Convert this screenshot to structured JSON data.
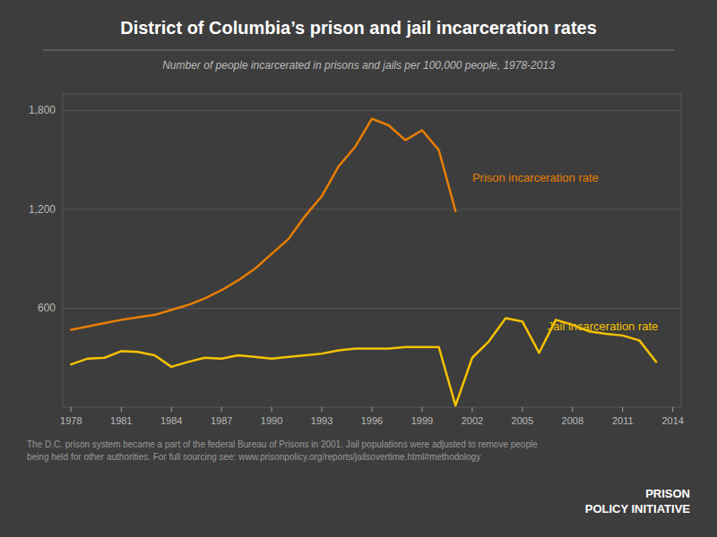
{
  "chart_data": {
    "type": "line",
    "title": "District of Columbia’s prison and jail incarceration rates",
    "subtitle": "Number of people incarcerated in prisons and jails per 100,000 people, 1978-2013",
    "footnote": "The D.C. prison system became a part of the federal Bureau of Prisons in 2001. Jail populations were adjusted to remove people\nbeing held for other authorities. For full sourcing see: www.prisonpolicy.org/reports/jailsovertime.html#methodology",
    "credit": "PRISON\nPOLICY INITIATIVE",
    "xlim": [
      1977.5,
      2014.5
    ],
    "xticks": [
      1978,
      1981,
      1984,
      1987,
      1990,
      1993,
      1996,
      1999,
      2002,
      2005,
      2008,
      2011,
      2014
    ],
    "ylim": [
      0,
      1900
    ],
    "yticks": [
      600,
      {
        "value": 1200,
        "label": "1,200"
      },
      {
        "value": 1800,
        "label": "1,800"
      }
    ],
    "grid": true,
    "series": [
      {
        "color": "#e87e04",
        "x": [
          1978,
          1979,
          1980,
          1981,
          1982,
          1983,
          1984,
          1985,
          1986,
          1987,
          1988,
          1989,
          1990,
          1991,
          1992,
          1993,
          1994,
          1995,
          1996,
          1997,
          1998,
          1999,
          2000,
          2001
        ],
        "values": [
          470,
          490,
          510,
          530,
          545,
          560,
          590,
          620,
          660,
          710,
          770,
          840,
          930,
          1020,
          1160,
          1280,
          1460,
          1580,
          1750,
          1710,
          1620,
          1680,
          1560,
          1190
        ]
      },
      {
        "color": "#f5c200",
        "x": [
          1978,
          1979,
          1980,
          1981,
          1982,
          1983,
          1984,
          1985,
          1986,
          1987,
          1988,
          1989,
          1990,
          1991,
          1992,
          1993,
          1994,
          1995,
          1996,
          1997,
          1998,
          1999,
          2000,
          2001,
          2002,
          2003,
          2004,
          2005,
          2006,
          2007,
          2008,
          2009,
          2010,
          2011,
          2012,
          2013
        ],
        "values": [
          260,
          295,
          300,
          340,
          335,
          315,
          245,
          275,
          300,
          295,
          315,
          305,
          295,
          305,
          315,
          325,
          345,
          355,
          355,
          355,
          365,
          365,
          365,
          10,
          300,
          400,
          540,
          520,
          330,
          530,
          500,
          460,
          445,
          435,
          405,
          275
        ]
      }
    ],
    "annotations": [
      {
        "text": "Prison incarceration rate",
        "x": 2002,
        "y": 1390,
        "color": "#e87e04"
      },
      {
        "text": "Jail incarceration rate",
        "x": 2006.5,
        "y": 490,
        "color": "#f5c200"
      }
    ]
  }
}
